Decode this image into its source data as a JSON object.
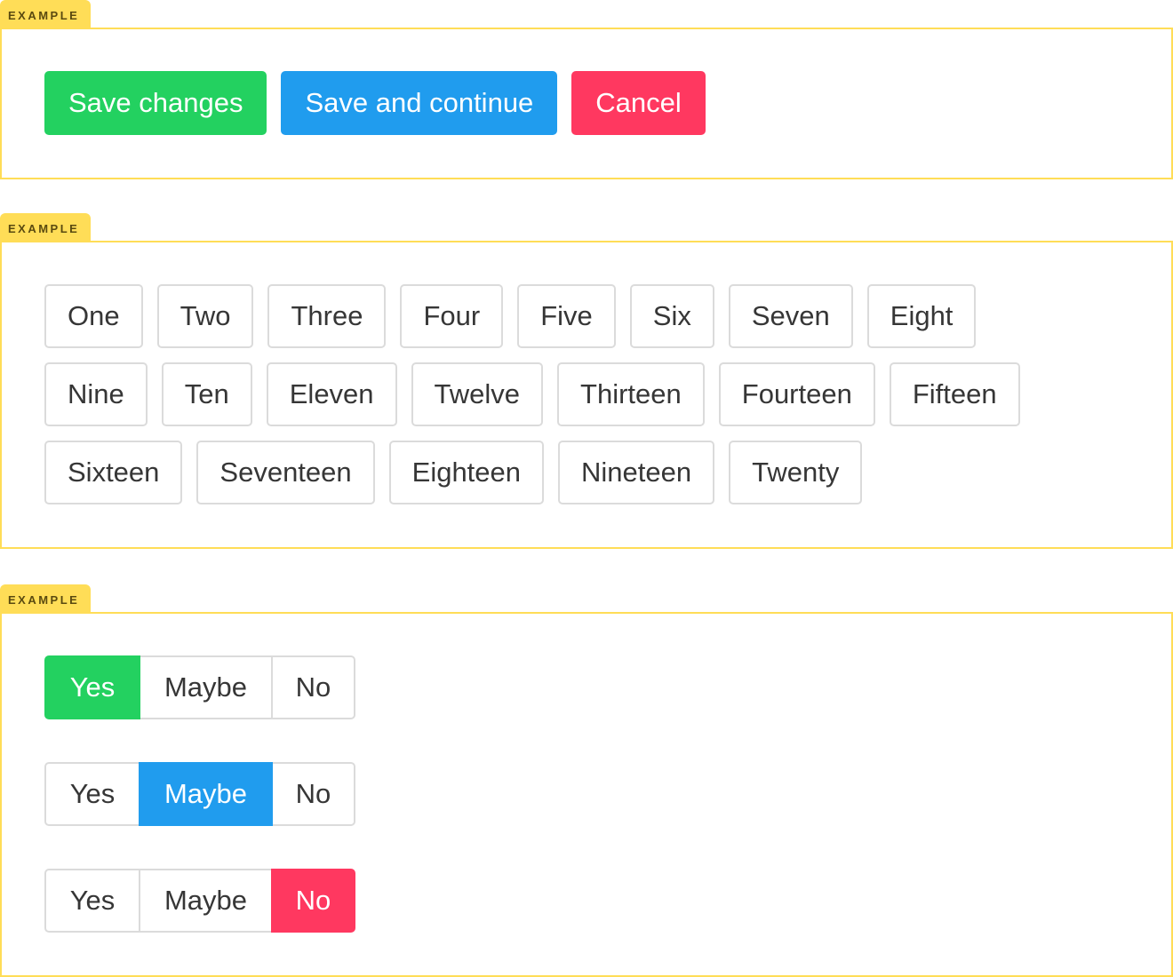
{
  "colors": {
    "success": "#23d160",
    "info": "#209cee",
    "danger": "#ff3860",
    "tag": "#ffdd57"
  },
  "examples": [
    {
      "label": "EXAMPLE",
      "buttons": [
        "Save changes",
        "Save and continue",
        "Cancel"
      ]
    },
    {
      "label": "EXAMPLE",
      "rows": [
        [
          "One",
          "Two",
          "Three",
          "Four",
          "Five",
          "Six",
          "Seven",
          "Eight"
        ],
        [
          "Nine",
          "Ten",
          "Eleven",
          "Twelve",
          "Thirteen",
          "Fourteen",
          "Fifteen"
        ],
        [
          "Sixteen",
          "Seventeen",
          "Eighteen",
          "Nineteen",
          "Twenty"
        ]
      ]
    },
    {
      "label": "EXAMPLE",
      "groups": [
        {
          "options": [
            "Yes",
            "Maybe",
            "No"
          ],
          "selected": "Yes"
        },
        {
          "options": [
            "Yes",
            "Maybe",
            "No"
          ],
          "selected": "Maybe"
        },
        {
          "options": [
            "Yes",
            "Maybe",
            "No"
          ],
          "selected": "No"
        }
      ]
    }
  ]
}
